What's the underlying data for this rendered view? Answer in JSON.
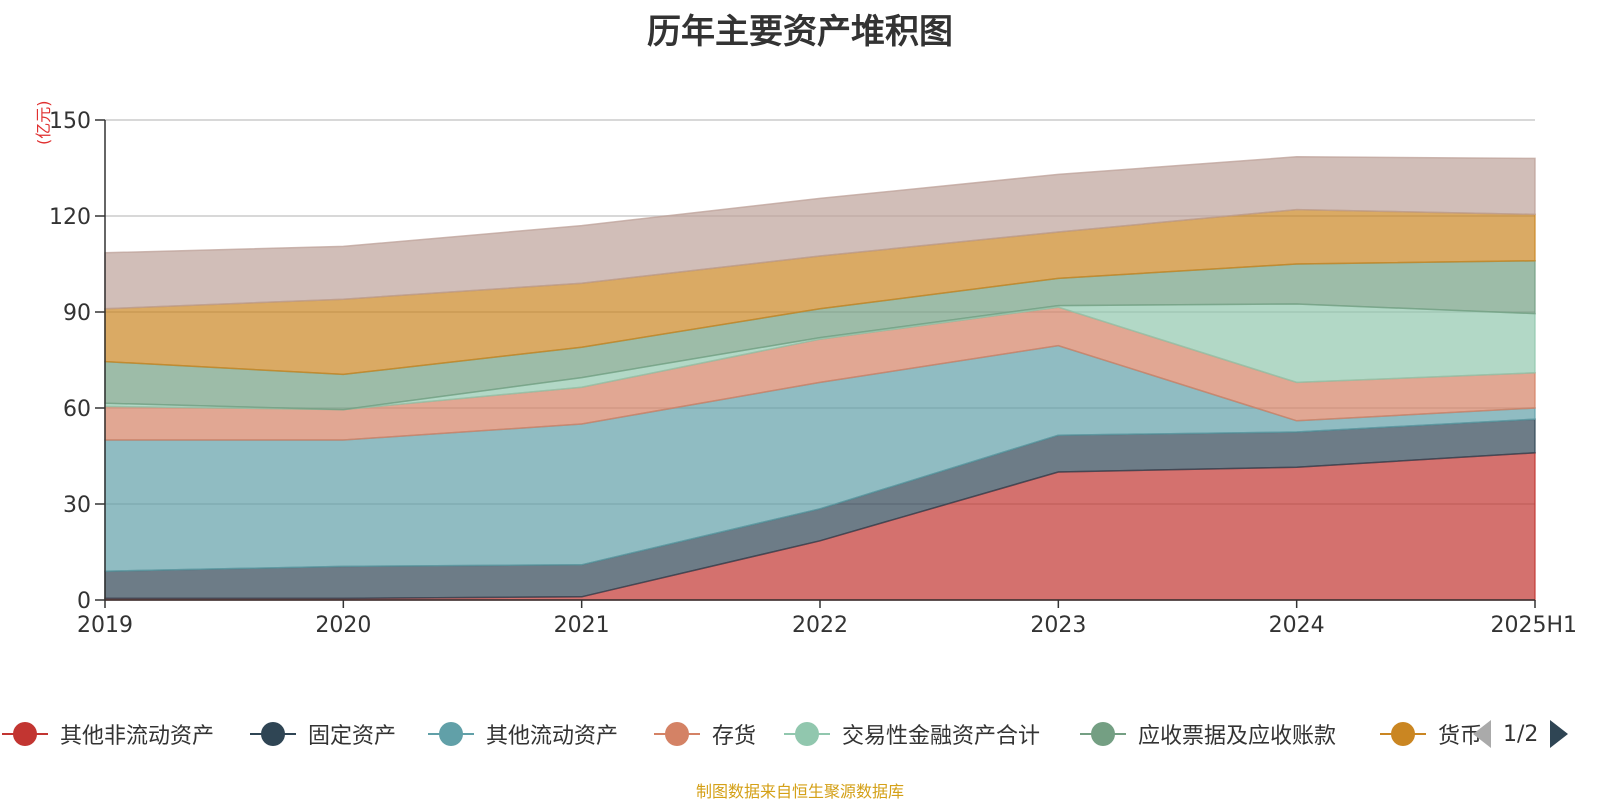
{
  "chart_data": {
    "type": "area",
    "stacked": true,
    "title": "历年主要资产堆积图",
    "ylabel": "(亿元)",
    "xlabel": "",
    "categories": [
      "2019",
      "2020",
      "2021",
      "2022",
      "2023",
      "2024",
      "2025H1"
    ],
    "ylim": [
      0,
      150
    ],
    "yticks": [
      0,
      30,
      60,
      90,
      120,
      150
    ],
    "grid": true,
    "legend_position": "bottom",
    "series": [
      {
        "name": "其他非流动资产",
        "color": "#c23531",
        "values": [
          0.5,
          0.5,
          1,
          18.5,
          40,
          41.5,
          46
        ]
      },
      {
        "name": "固定资产",
        "color": "#2f4554",
        "values": [
          8.5,
          10,
          10,
          10,
          11.5,
          11,
          10.5
        ]
      },
      {
        "name": "其他流动资产",
        "color": "#61a0a8",
        "values": [
          41,
          39.5,
          44,
          39.5,
          28,
          3.5,
          3.5
        ]
      },
      {
        "name": "存货",
        "color": "#d48265",
        "values": [
          10.5,
          9.5,
          11.5,
          13.5,
          12,
          12,
          11
        ]
      },
      {
        "name": "交易性金融资产合计",
        "color": "#91c7ae",
        "values": [
          1,
          0,
          3,
          0.5,
          0.5,
          24.5,
          18.5
        ]
      },
      {
        "name": "应收票据及应收账款",
        "color": "#749f83",
        "values": [
          13,
          11,
          9.5,
          9,
          8.5,
          12.5,
          16.5
        ]
      },
      {
        "name": "货币",
        "color": "#ca8622",
        "values": [
          16.5,
          23.5,
          20,
          16.5,
          14.5,
          17,
          14.5
        ]
      },
      {
        "name": "",
        "color": "#bda29a",
        "values": [
          17.5,
          16.5,
          18,
          18,
          18,
          16.5,
          17.5
        ]
      }
    ]
  },
  "legend": {
    "items": [
      "其他非流动资产",
      "固定资产",
      "其他流动资产",
      "存货",
      "交易性金融资产合计",
      "应收票据及应收账款",
      "货币"
    ],
    "page": "1/2"
  },
  "source": "制图数据来自恒生聚源数据库"
}
